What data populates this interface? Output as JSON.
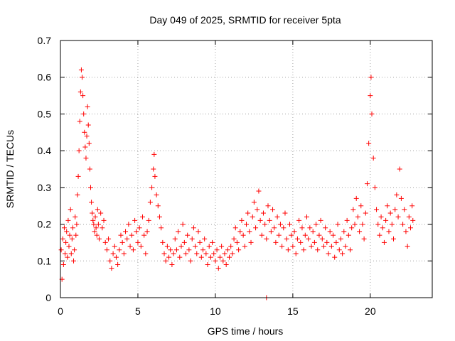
{
  "chart_data": {
    "type": "scatter",
    "title": "Day 049 of 2025, SRMTID for receiver 5pta",
    "xlabel": "GPS time / hours",
    "ylabel": "SRMTID / TECUs",
    "xlim": [
      0,
      24
    ],
    "ylim": [
      0,
      0.7
    ],
    "xticks": [
      0,
      5,
      10,
      15,
      20
    ],
    "xtick_labels": [
      "0",
      "5",
      "10",
      "15",
      "20"
    ],
    "yticks": [
      0,
      0.1,
      0.2,
      0.3,
      0.4,
      0.5,
      0.6,
      0.7
    ],
    "ytick_labels": [
      "0",
      "0.1",
      "0.2",
      "0.3",
      "0.4",
      "0.5",
      "0.6",
      "0.7"
    ],
    "grid": true,
    "legend": "none",
    "marker": "+",
    "color": "#ff0000",
    "series": [
      {
        "name": "SRMTID",
        "marker": "+",
        "points": [
          [
            0.05,
            0.13
          ],
          [
            0.1,
            0.05
          ],
          [
            0.15,
            0.16
          ],
          [
            0.2,
            0.09
          ],
          [
            0.25,
            0.19
          ],
          [
            0.3,
            0.12
          ],
          [
            0.35,
            0.15
          ],
          [
            0.4,
            0.18
          ],
          [
            0.45,
            0.11
          ],
          [
            0.5,
            0.21
          ],
          [
            0.55,
            0.14
          ],
          [
            0.6,
            0.17
          ],
          [
            0.65,
            0.24
          ],
          [
            0.7,
            0.12
          ],
          [
            0.75,
            0.16
          ],
          [
            0.8,
            0.19
          ],
          [
            0.85,
            0.1
          ],
          [
            0.9,
            0.13
          ],
          [
            0.95,
            0.22
          ],
          [
            1.0,
            0.17
          ],
          [
            1.05,
            0.2
          ],
          [
            1.1,
            0.28
          ],
          [
            1.15,
            0.33
          ],
          [
            1.2,
            0.4
          ],
          [
            1.25,
            0.48
          ],
          [
            1.3,
            0.56
          ],
          [
            1.35,
            0.62
          ],
          [
            1.4,
            0.6
          ],
          [
            1.45,
            0.55
          ],
          [
            1.5,
            0.5
          ],
          [
            1.55,
            0.45
          ],
          [
            1.6,
            0.41
          ],
          [
            1.65,
            0.38
          ],
          [
            1.7,
            0.44
          ],
          [
            1.75,
            0.52
          ],
          [
            1.8,
            0.47
          ],
          [
            1.85,
            0.42
          ],
          [
            1.9,
            0.35
          ],
          [
            1.95,
            0.3
          ],
          [
            2.0,
            0.26
          ],
          [
            2.05,
            0.23
          ],
          [
            2.1,
            0.21
          ],
          [
            2.15,
            0.2
          ],
          [
            2.2,
            0.18
          ],
          [
            2.25,
            0.22
          ],
          [
            2.3,
            0.19
          ],
          [
            2.35,
            0.17
          ],
          [
            2.4,
            0.24
          ],
          [
            2.45,
            0.2
          ],
          [
            2.5,
            0.16
          ],
          [
            2.6,
            0.23
          ],
          [
            2.7,
            0.19
          ],
          [
            2.8,
            0.21
          ],
          [
            2.9,
            0.15
          ],
          [
            3.0,
            0.13
          ],
          [
            3.1,
            0.16
          ],
          [
            3.2,
            0.1
          ],
          [
            3.3,
            0.08
          ],
          [
            3.4,
            0.12
          ],
          [
            3.5,
            0.14
          ],
          [
            3.6,
            0.11
          ],
          [
            3.7,
            0.09
          ],
          [
            3.8,
            0.13
          ],
          [
            3.9,
            0.17
          ],
          [
            4.0,
            0.15
          ],
          [
            4.1,
            0.12
          ],
          [
            4.2,
            0.18
          ],
          [
            4.3,
            0.16
          ],
          [
            4.4,
            0.2
          ],
          [
            4.5,
            0.14
          ],
          [
            4.6,
            0.17
          ],
          [
            4.7,
            0.13
          ],
          [
            4.8,
            0.21
          ],
          [
            4.9,
            0.18
          ],
          [
            5.0,
            0.15
          ],
          [
            5.1,
            0.19
          ],
          [
            5.2,
            0.14
          ],
          [
            5.3,
            0.22
          ],
          [
            5.4,
            0.17
          ],
          [
            5.5,
            0.12
          ],
          [
            5.6,
            0.18
          ],
          [
            5.7,
            0.21
          ],
          [
            5.8,
            0.26
          ],
          [
            5.9,
            0.3
          ],
          [
            6.0,
            0.35
          ],
          [
            6.05,
            0.39
          ],
          [
            6.1,
            0.33
          ],
          [
            6.2,
            0.28
          ],
          [
            6.3,
            0.25
          ],
          [
            6.4,
            0.22
          ],
          [
            6.5,
            0.19
          ],
          [
            6.6,
            0.15
          ],
          [
            6.7,
            0.12
          ],
          [
            6.8,
            0.1
          ],
          [
            6.9,
            0.14
          ],
          [
            7.0,
            0.11
          ],
          [
            7.1,
            0.13
          ],
          [
            7.2,
            0.09
          ],
          [
            7.3,
            0.12
          ],
          [
            7.4,
            0.16
          ],
          [
            7.5,
            0.13
          ],
          [
            7.6,
            0.18
          ],
          [
            7.7,
            0.11
          ],
          [
            7.8,
            0.14
          ],
          [
            7.9,
            0.2
          ],
          [
            8.0,
            0.15
          ],
          [
            8.1,
            0.12
          ],
          [
            8.2,
            0.17
          ],
          [
            8.3,
            0.13
          ],
          [
            8.4,
            0.1
          ],
          [
            8.5,
            0.16
          ],
          [
            8.6,
            0.19
          ],
          [
            8.7,
            0.14
          ],
          [
            8.8,
            0.12
          ],
          [
            8.9,
            0.18
          ],
          [
            9.0,
            0.15
          ],
          [
            9.1,
            0.11
          ],
          [
            9.2,
            0.13
          ],
          [
            9.3,
            0.16
          ],
          [
            9.4,
            0.12
          ],
          [
            9.5,
            0.09
          ],
          [
            9.6,
            0.14
          ],
          [
            9.7,
            0.11
          ],
          [
            9.8,
            0.15
          ],
          [
            9.9,
            0.12
          ],
          [
            10.0,
            0.1
          ],
          [
            10.1,
            0.13
          ],
          [
            10.2,
            0.08
          ],
          [
            10.3,
            0.11
          ],
          [
            10.4,
            0.14
          ],
          [
            10.5,
            0.1
          ],
          [
            10.6,
            0.12
          ],
          [
            10.7,
            0.09
          ],
          [
            10.8,
            0.13
          ],
          [
            10.9,
            0.11
          ],
          [
            11.0,
            0.14
          ],
          [
            11.1,
            0.12
          ],
          [
            11.2,
            0.16
          ],
          [
            11.3,
            0.19
          ],
          [
            11.4,
            0.15
          ],
          [
            11.5,
            0.13
          ],
          [
            11.6,
            0.18
          ],
          [
            11.7,
            0.21
          ],
          [
            11.8,
            0.17
          ],
          [
            11.9,
            0.14
          ],
          [
            12.0,
            0.2
          ],
          [
            12.1,
            0.23
          ],
          [
            12.2,
            0.18
          ],
          [
            12.3,
            0.15
          ],
          [
            12.4,
            0.22
          ],
          [
            12.5,
            0.26
          ],
          [
            12.6,
            0.19
          ],
          [
            12.7,
            0.24
          ],
          [
            12.8,
            0.29
          ],
          [
            12.9,
            0.21
          ],
          [
            13.0,
            0.17
          ],
          [
            13.1,
            0.23
          ],
          [
            13.2,
            0.2
          ],
          [
            13.3,
            0.16
          ],
          [
            13.4,
            0.25
          ],
          [
            13.5,
            0.21
          ],
          [
            13.6,
            0.18
          ],
          [
            13.7,
            0.24
          ],
          [
            13.8,
            0.19
          ],
          [
            13.9,
            0.15
          ],
          [
            14.0,
            0.22
          ],
          [
            14.1,
            0.17
          ],
          [
            14.2,
            0.2
          ],
          [
            14.3,
            0.14
          ],
          [
            14.4,
            0.19
          ],
          [
            14.5,
            0.23
          ],
          [
            14.6,
            0.16
          ],
          [
            14.7,
            0.13
          ],
          [
            14.8,
            0.2
          ],
          [
            14.9,
            0.17
          ],
          [
            15.0,
            0.14
          ],
          [
            15.1,
            0.18
          ],
          [
            15.2,
            0.12
          ],
          [
            15.3,
            0.16
          ],
          [
            15.4,
            0.21
          ],
          [
            15.5,
            0.15
          ],
          [
            15.6,
            0.19
          ],
          [
            15.7,
            0.13
          ],
          [
            15.8,
            0.17
          ],
          [
            15.9,
            0.22
          ],
          [
            16.0,
            0.16
          ],
          [
            16.1,
            0.19
          ],
          [
            16.2,
            0.14
          ],
          [
            16.3,
            0.18
          ],
          [
            16.4,
            0.15
          ],
          [
            16.5,
            0.2
          ],
          [
            16.6,
            0.13
          ],
          [
            16.7,
            0.17
          ],
          [
            16.8,
            0.21
          ],
          [
            16.9,
            0.16
          ],
          [
            17.0,
            0.14
          ],
          [
            17.1,
            0.19
          ],
          [
            17.2,
            0.15
          ],
          [
            17.3,
            0.12
          ],
          [
            17.4,
            0.18
          ],
          [
            17.5,
            0.14
          ],
          [
            17.6,
            0.17
          ],
          [
            17.7,
            0.11
          ],
          [
            17.8,
            0.15
          ],
          [
            17.9,
            0.2
          ],
          [
            18.0,
            0.13
          ],
          [
            18.1,
            0.16
          ],
          [
            18.2,
            0.12
          ],
          [
            18.3,
            0.18
          ],
          [
            18.4,
            0.14
          ],
          [
            18.5,
            0.21
          ],
          [
            18.6,
            0.17
          ],
          [
            18.7,
            0.13
          ],
          [
            18.8,
            0.19
          ],
          [
            18.9,
            0.24
          ],
          [
            19.0,
            0.2
          ],
          [
            19.1,
            0.27
          ],
          [
            19.2,
            0.22
          ],
          [
            19.3,
            0.18
          ],
          [
            19.4,
            0.25
          ],
          [
            19.5,
            0.2
          ],
          [
            19.6,
            0.16
          ],
          [
            19.7,
            0.23
          ],
          [
            19.8,
            0.31
          ],
          [
            19.9,
            0.42
          ],
          [
            20.0,
            0.55
          ],
          [
            20.05,
            0.6
          ],
          [
            20.1,
            0.5
          ],
          [
            20.2,
            0.38
          ],
          [
            20.3,
            0.3
          ],
          [
            20.4,
            0.24
          ],
          [
            20.5,
            0.2
          ],
          [
            20.6,
            0.17
          ],
          [
            20.7,
            0.22
          ],
          [
            20.8,
            0.19
          ],
          [
            20.9,
            0.15
          ],
          [
            21.0,
            0.21
          ],
          [
            21.1,
            0.25
          ],
          [
            21.2,
            0.18
          ],
          [
            21.3,
            0.23
          ],
          [
            21.4,
            0.2
          ],
          [
            21.5,
            0.16
          ],
          [
            21.6,
            0.24
          ],
          [
            21.7,
            0.28
          ],
          [
            21.8,
            0.22
          ],
          [
            21.9,
            0.35
          ],
          [
            22.0,
            0.27
          ],
          [
            22.1,
            0.2
          ],
          [
            22.2,
            0.24
          ],
          [
            22.3,
            0.18
          ],
          [
            22.4,
            0.14
          ],
          [
            22.5,
            0.22
          ],
          [
            22.6,
            0.19
          ],
          [
            22.7,
            0.25
          ],
          [
            22.75,
            0.21
          ],
          [
            13.3,
            0.0
          ]
        ]
      }
    ]
  }
}
